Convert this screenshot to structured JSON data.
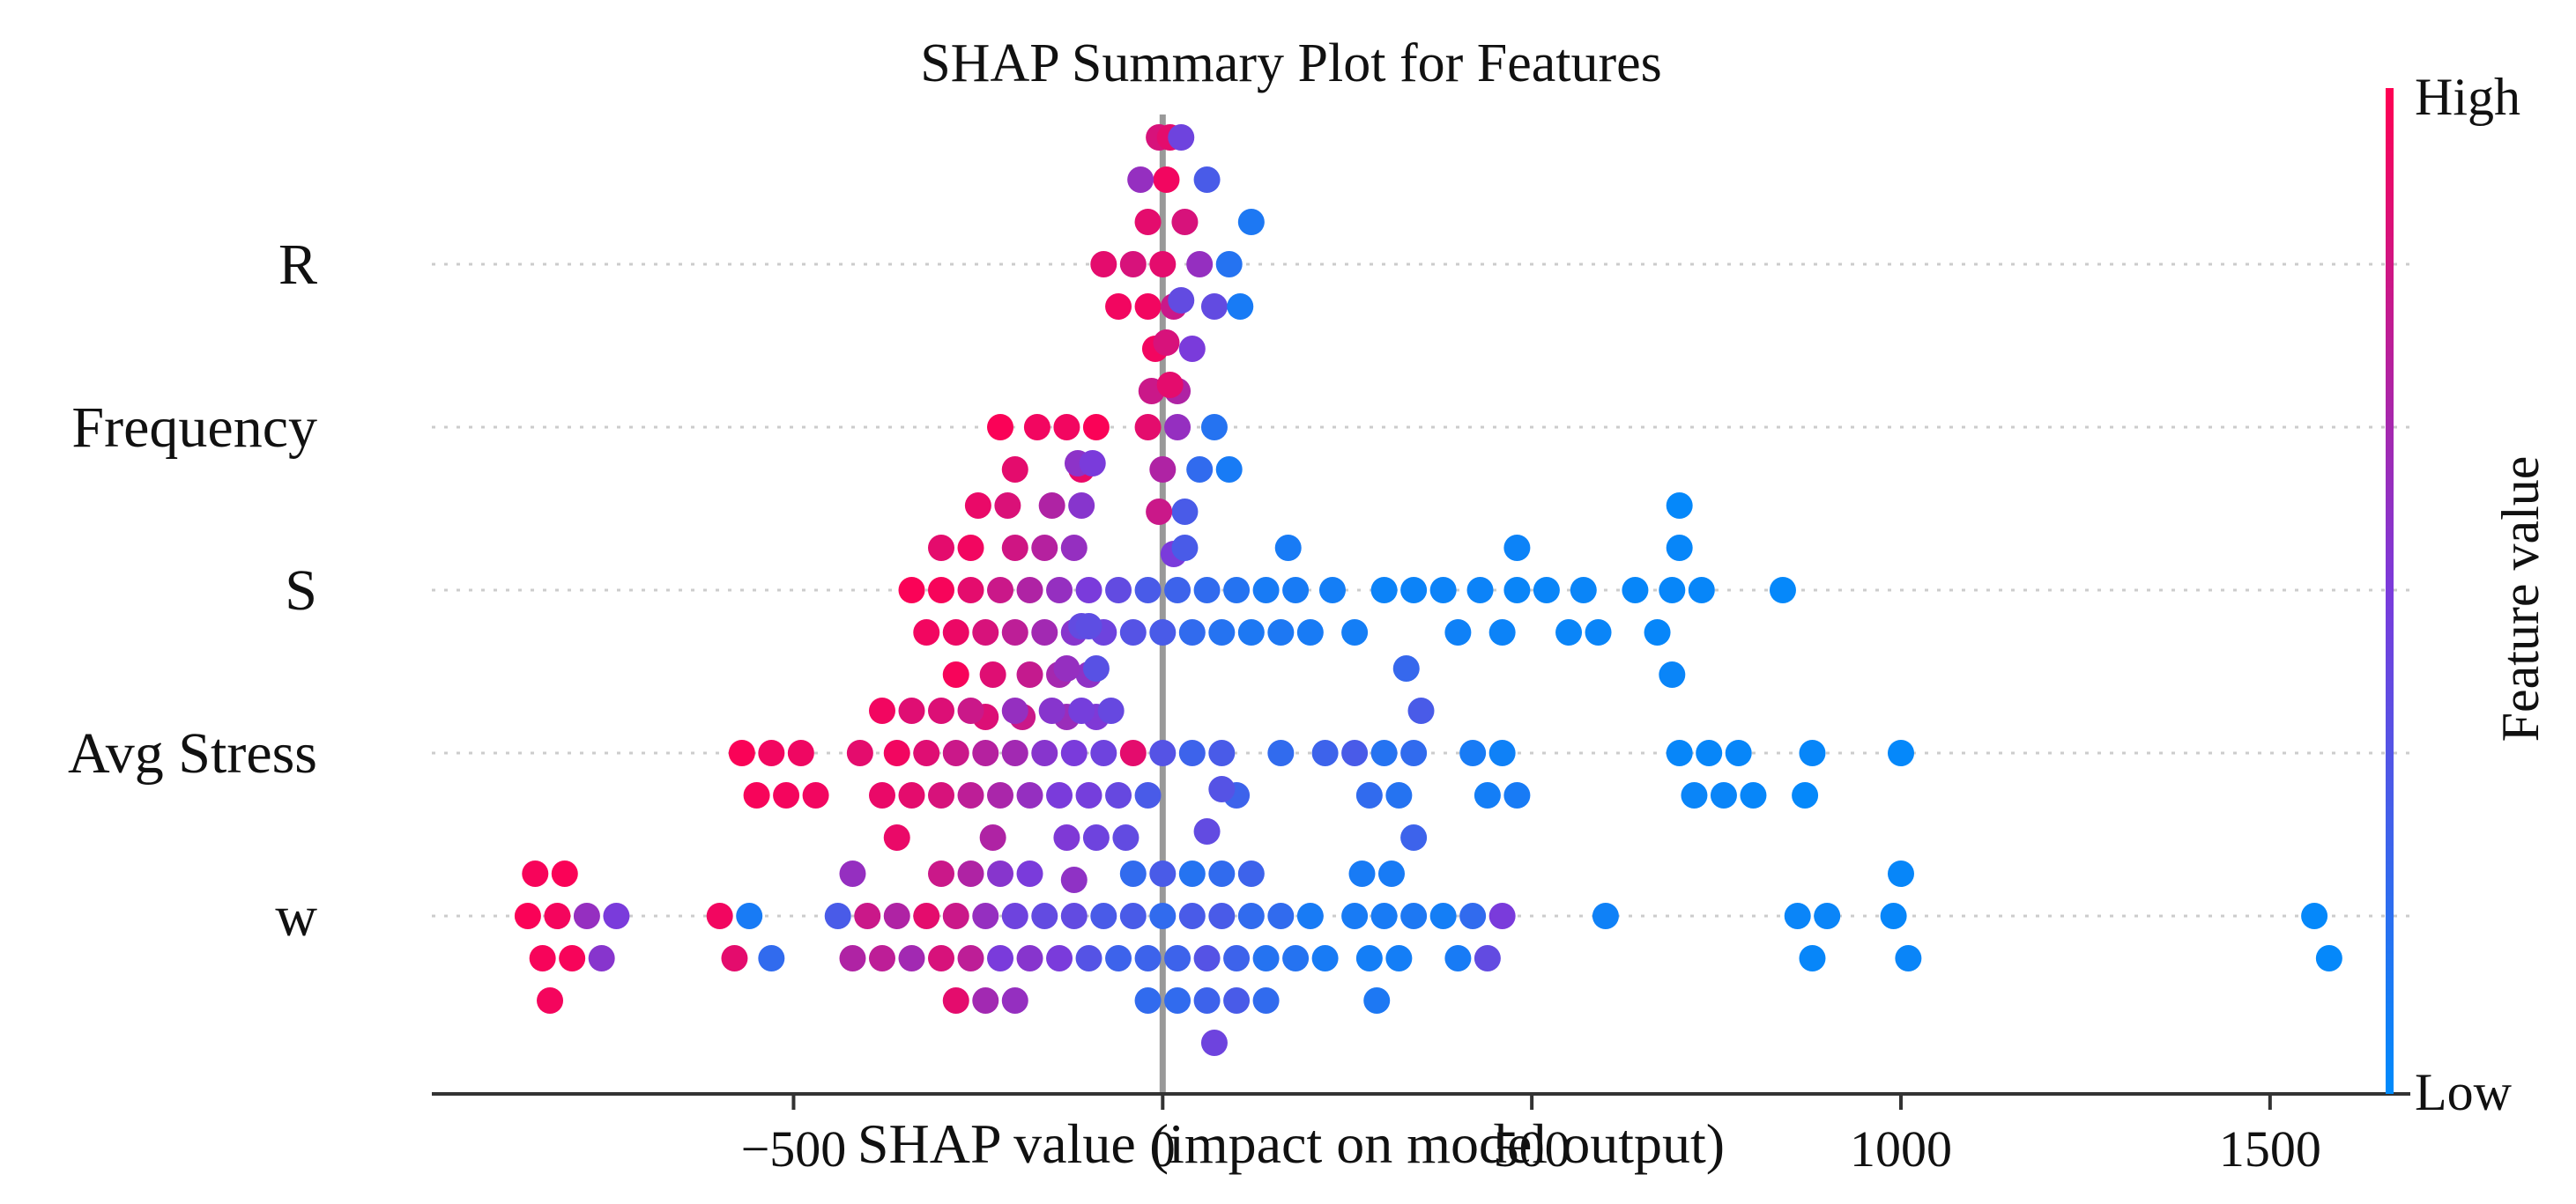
{
  "chart_data": {
    "type": "scatter",
    "subtype": "shap-beeswarm",
    "title": "SHAP Summary Plot for Features",
    "xlabel": "SHAP value (impact on model output)",
    "ylabel": "",
    "xlim": [
      -990,
      1690
    ],
    "xticks": [
      -500,
      0,
      500,
      1000,
      1500
    ],
    "xtick_labels": [
      "−500",
      "0",
      "500",
      "1000",
      "1500"
    ],
    "colorbar": {
      "label": "Feature value",
      "high_label": "High",
      "low_label": "Low",
      "high_color": "#ff0052",
      "low_color": "#008bfb"
    },
    "features": [
      {
        "name": "R",
        "points": [
          [
            -80,
            0.9
          ],
          [
            -60,
            0.95
          ],
          [
            -40,
            0.85
          ],
          [
            -20,
            0.95
          ],
          [
            0,
            0.9
          ],
          [
            15,
            0.8
          ],
          [
            30,
            0.85
          ],
          [
            50,
            0.6
          ],
          [
            70,
            0.4
          ],
          [
            90,
            0.15
          ],
          [
            105,
            0.1
          ],
          [
            120,
            0.12
          ],
          [
            -20,
            0.9
          ],
          [
            -10,
            0.95
          ],
          [
            5,
            0.95
          ],
          [
            20,
            0.7
          ],
          [
            -5,
            0.85
          ],
          [
            10,
            0.9
          ],
          [
            -30,
            0.6
          ],
          [
            40,
            0.5
          ],
          [
            60,
            0.3
          ],
          [
            -15,
            0.8
          ],
          [
            25,
            0.45
          ]
        ]
      },
      {
        "name": "Frequency",
        "points": [
          [
            -220,
            0.98
          ],
          [
            -200,
            0.9
          ],
          [
            -170,
            0.95
          ],
          [
            -130,
            0.95
          ],
          [
            -110,
            0.92
          ],
          [
            -90,
            0.98
          ],
          [
            -20,
            0.9
          ],
          [
            0,
            0.7
          ],
          [
            10,
            0.9
          ],
          [
            20,
            0.6
          ],
          [
            30,
            0.3
          ],
          [
            50,
            0.2
          ],
          [
            70,
            0.15
          ],
          [
            90,
            0.1
          ],
          [
            5,
            0.85
          ],
          [
            15,
            0.5
          ],
          [
            25,
            0.4
          ],
          [
            -5,
            0.8
          ]
        ]
      },
      {
        "name": "S",
        "points": [
          [
            -340,
            0.98
          ],
          [
            -320,
            0.95
          ],
          [
            -300,
            0.97
          ],
          [
            -280,
            0.93
          ],
          [
            -260,
            0.9
          ],
          [
            -240,
            0.85
          ],
          [
            -220,
            0.8
          ],
          [
            -200,
            0.75
          ],
          [
            -180,
            0.7
          ],
          [
            -160,
            0.65
          ],
          [
            -140,
            0.6
          ],
          [
            -120,
            0.55
          ],
          [
            -100,
            0.5
          ],
          [
            -80,
            0.45
          ],
          [
            -60,
            0.4
          ],
          [
            -40,
            0.35
          ],
          [
            -20,
            0.3
          ],
          [
            0,
            0.3
          ],
          [
            20,
            0.25
          ],
          [
            40,
            0.2
          ],
          [
            60,
            0.2
          ],
          [
            80,
            0.15
          ],
          [
            100,
            0.15
          ],
          [
            120,
            0.12
          ],
          [
            140,
            0.1
          ],
          [
            160,
            0.12
          ],
          [
            180,
            0.1
          ],
          [
            200,
            0.1
          ],
          [
            230,
            0.08
          ],
          [
            260,
            0.08
          ],
          [
            300,
            0.05
          ],
          [
            340,
            0.05
          ],
          [
            380,
            0.05
          ],
          [
            400,
            0.06
          ],
          [
            430,
            0.05
          ],
          [
            460,
            0.05
          ],
          [
            480,
            0.04
          ],
          [
            520,
            0.04
          ],
          [
            550,
            0.04
          ],
          [
            570,
            0.04
          ],
          [
            590,
            0.04
          ],
          [
            640,
            0.03
          ],
          [
            670,
            0.03
          ],
          [
            690,
            0.03
          ],
          [
            700,
            0.03
          ],
          [
            730,
            0.03
          ],
          [
            840,
            0.02
          ],
          [
            -300,
            0.9
          ],
          [
            -260,
            0.95
          ],
          [
            -230,
            0.88
          ],
          [
            -200,
            0.82
          ],
          [
            -180,
            0.78
          ],
          [
            -160,
            0.72
          ],
          [
            -140,
            0.66
          ],
          [
            -120,
            0.6
          ],
          [
            -110,
            0.55
          ],
          [
            -100,
            0.58
          ],
          [
            -90,
            0.52
          ],
          [
            -280,
            0.97
          ],
          [
            -250,
            0.92
          ],
          [
            -240,
            0.87
          ],
          [
            -210,
            0.86
          ],
          [
            -190,
            0.8
          ],
          [
            -150,
            0.7
          ],
          [
            -130,
            0.62
          ],
          [
            -115,
            0.57
          ],
          [
            -95,
            0.5
          ],
          [
            30,
            0.3
          ],
          [
            170,
            0.1
          ],
          [
            480,
            0.05
          ],
          [
            690,
            0.04
          ],
          [
            700,
            0.02
          ]
        ]
      },
      {
        "name": "Avg Stress",
        "points": [
          [
            -570,
            0.98
          ],
          [
            -550,
            0.97
          ],
          [
            -530,
            0.95
          ],
          [
            -510,
            0.96
          ],
          [
            -490,
            0.94
          ],
          [
            -470,
            0.95
          ],
          [
            -410,
            0.9
          ],
          [
            -380,
            0.92
          ],
          [
            -360,
            0.95
          ],
          [
            -340,
            0.9
          ],
          [
            -320,
            0.88
          ],
          [
            -300,
            0.85
          ],
          [
            -280,
            0.8
          ],
          [
            -260,
            0.75
          ],
          [
            -240,
            0.72
          ],
          [
            -220,
            0.68
          ],
          [
            -200,
            0.65
          ],
          [
            -180,
            0.6
          ],
          [
            -160,
            0.55
          ],
          [
            -140,
            0.5
          ],
          [
            -120,
            0.5
          ],
          [
            -100,
            0.48
          ],
          [
            -80,
            0.45
          ],
          [
            -60,
            0.42
          ],
          [
            -40,
            0.9
          ],
          [
            -20,
            0.3
          ],
          [
            0,
            0.35
          ],
          [
            40,
            0.25
          ],
          [
            80,
            0.3
          ],
          [
            100,
            0.25
          ],
          [
            160,
            0.2
          ],
          [
            220,
            0.25
          ],
          [
            260,
            0.3
          ],
          [
            280,
            0.2
          ],
          [
            300,
            0.15
          ],
          [
            320,
            0.15
          ],
          [
            340,
            0.2
          ],
          [
            350,
            0.3
          ],
          [
            420,
            0.1
          ],
          [
            440,
            0.08
          ],
          [
            460,
            0.06
          ],
          [
            480,
            0.1
          ],
          [
            700,
            0.03
          ],
          [
            720,
            0.04
          ],
          [
            740,
            0.03
          ],
          [
            760,
            0.04
          ],
          [
            780,
            0.03
          ],
          [
            800,
            0.03
          ],
          [
            880,
            0.03
          ],
          [
            1000,
            0.02
          ],
          [
            -380,
            0.95
          ],
          [
            -360,
            0.92
          ],
          [
            -340,
            0.88
          ],
          [
            -300,
            0.87
          ],
          [
            -260,
            0.8
          ],
          [
            -230,
            0.7
          ],
          [
            -200,
            0.6
          ],
          [
            -150,
            0.55
          ],
          [
            -130,
            0.52
          ],
          [
            -110,
            0.48
          ],
          [
            -90,
            0.45
          ],
          [
            -70,
            0.42
          ],
          [
            -50,
            0.4
          ],
          [
            -130,
            0.6
          ],
          [
            -120,
            0.58
          ],
          [
            -110,
            0.4
          ],
          [
            -100,
            0.38
          ],
          [
            -90,
            0.36
          ],
          [
            340,
            0.25
          ],
          [
            330,
            0.22
          ],
          [
            870,
            0.02
          ]
        ]
      },
      {
        "name": "w",
        "points": [
          [
            -860,
            0.98
          ],
          [
            -840,
            0.97
          ],
          [
            -820,
            0.96
          ],
          [
            -800,
            0.97
          ],
          [
            -780,
            0.6
          ],
          [
            -760,
            0.55
          ],
          [
            -740,
            0.5
          ],
          [
            -600,
            0.95
          ],
          [
            -580,
            0.9
          ],
          [
            -560,
            0.1
          ],
          [
            -530,
            0.2
          ],
          [
            -440,
            0.3
          ],
          [
            -420,
            0.7
          ],
          [
            -400,
            0.8
          ],
          [
            -380,
            0.75
          ],
          [
            -360,
            0.7
          ],
          [
            -340,
            0.65
          ],
          [
            -320,
            0.9
          ],
          [
            -300,
            0.85
          ],
          [
            -280,
            0.8
          ],
          [
            -260,
            0.75
          ],
          [
            -240,
            0.6
          ],
          [
            -220,
            0.5
          ],
          [
            -200,
            0.45
          ],
          [
            -180,
            0.55
          ],
          [
            -160,
            0.4
          ],
          [
            -140,
            0.5
          ],
          [
            -120,
            0.4
          ],
          [
            -100,
            0.35
          ],
          [
            -80,
            0.3
          ],
          [
            -60,
            0.25
          ],
          [
            -40,
            0.3
          ],
          [
            -20,
            0.25
          ],
          [
            0,
            0.2
          ],
          [
            20,
            0.25
          ],
          [
            40,
            0.3
          ],
          [
            60,
            0.35
          ],
          [
            80,
            0.3
          ],
          [
            100,
            0.25
          ],
          [
            120,
            0.2
          ],
          [
            140,
            0.15
          ],
          [
            160,
            0.2
          ],
          [
            180,
            0.15
          ],
          [
            200,
            0.1
          ],
          [
            220,
            0.1
          ],
          [
            260,
            0.1
          ],
          [
            280,
            0.08
          ],
          [
            300,
            0.1
          ],
          [
            320,
            0.08
          ],
          [
            340,
            0.12
          ],
          [
            380,
            0.08
          ],
          [
            400,
            0.1
          ],
          [
            420,
            0.2
          ],
          [
            440,
            0.4
          ],
          [
            460,
            0.5
          ],
          [
            600,
            0.06
          ],
          [
            860,
            0.04
          ],
          [
            880,
            0.03
          ],
          [
            900,
            0.04
          ],
          [
            990,
            0.03
          ],
          [
            1010,
            0.04
          ],
          [
            1560,
            0.02
          ],
          [
            1580,
            0.02
          ],
          [
            -850,
            0.97
          ],
          [
            -830,
            0.96
          ],
          [
            -810,
            0.98
          ],
          [
            -420,
            0.6
          ],
          [
            -300,
            0.8
          ],
          [
            -280,
            0.9
          ],
          [
            -260,
            0.7
          ],
          [
            -240,
            0.65
          ],
          [
            -220,
            0.55
          ],
          [
            -200,
            0.6
          ],
          [
            -180,
            0.5
          ],
          [
            -40,
            0.2
          ],
          [
            -20,
            0.2
          ],
          [
            0,
            0.3
          ],
          [
            20,
            0.2
          ],
          [
            40,
            0.15
          ],
          [
            60,
            0.25
          ],
          [
            80,
            0.2
          ],
          [
            100,
            0.3
          ],
          [
            120,
            0.25
          ],
          [
            140,
            0.2
          ],
          [
            60,
            0.4
          ],
          [
            70,
            0.45
          ],
          [
            80,
            0.35
          ],
          [
            270,
            0.1
          ],
          [
            290,
            0.12
          ],
          [
            310,
            0.1
          ],
          [
            1000,
            0.03
          ]
        ]
      }
    ]
  }
}
